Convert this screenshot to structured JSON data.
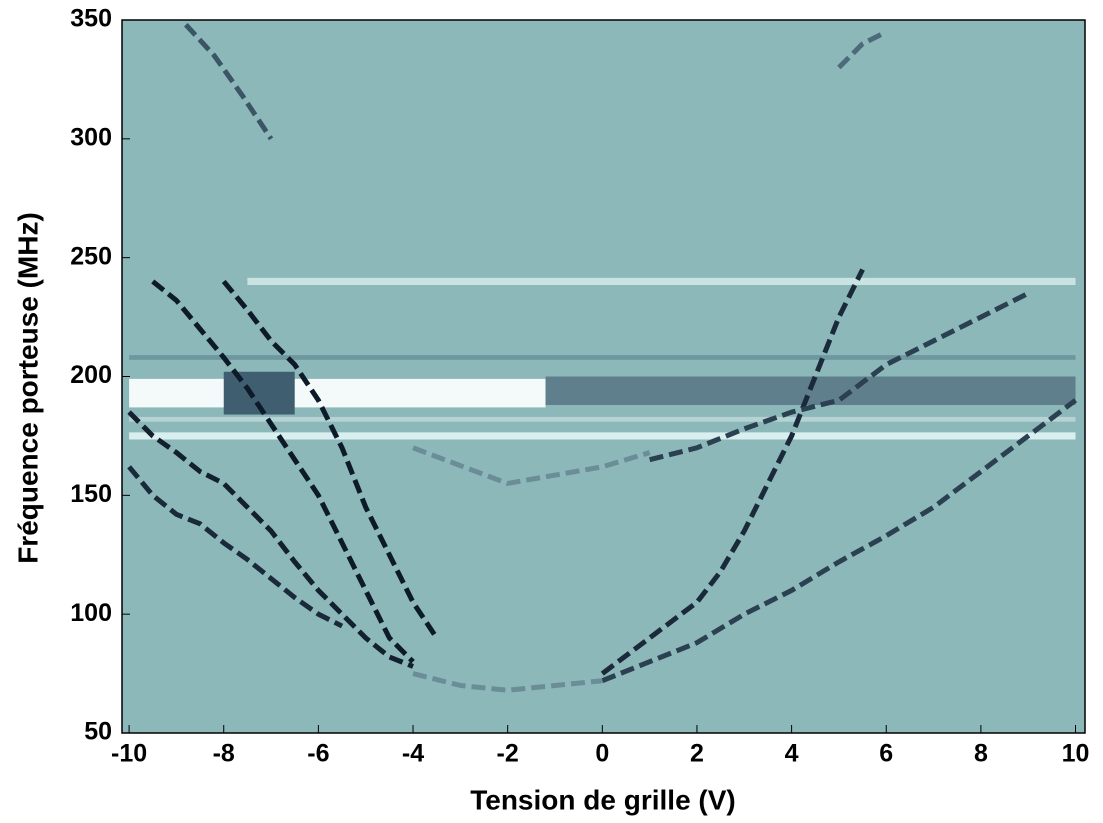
{
  "chart_data": {
    "type": "heatmap_traces",
    "xlabel": "Tension de grille (V)",
    "ylabel": "Fréquence porteuse (MHz)",
    "background": "#8db8ba",
    "xlim": [
      -10.15,
      10.2
    ],
    "xticks": [
      -10,
      -8,
      -6,
      -4,
      -2,
      0,
      2,
      4,
      6,
      8,
      10
    ],
    "ylim": [
      50,
      350
    ],
    "yticks": [
      50,
      100,
      150,
      200,
      250,
      300,
      350
    ],
    "bands": [
      {
        "color": "#f4fafa",
        "xrange": [
          -10,
          -1.2
        ],
        "yrange": [
          187,
          199
        ]
      },
      {
        "color": "#5f7f8c",
        "xrange": [
          -1.2,
          10
        ],
        "yrange": [
          188,
          200
        ]
      },
      {
        "color": "#3f5f70",
        "xrange": [
          -8,
          -6.5
        ],
        "yrange": [
          184,
          202
        ]
      },
      {
        "color": "#c9e3e3",
        "xrange": [
          -7.5,
          10
        ],
        "yrange": [
          238.5,
          241.5
        ]
      },
      {
        "color": "#d9eeee",
        "xrange": [
          -10,
          10
        ],
        "yrange": [
          173.5,
          176.5
        ]
      },
      {
        "color": "#b5d3d4",
        "xrange": [
          -10,
          10
        ],
        "yrange": [
          181,
          183
        ]
      },
      {
        "color": "#6f97a0",
        "xrange": [
          -10,
          10
        ],
        "yrange": [
          207,
          209
        ]
      }
    ],
    "series": [
      {
        "color": "#0d1a2a",
        "x": [
          -8,
          -7.5,
          -7,
          -6.5,
          -6,
          -5.5,
          -5,
          -4.5,
          -4,
          -3.5
        ],
        "values": [
          240,
          228,
          215,
          205,
          190,
          170,
          145,
          125,
          105,
          90
        ]
      },
      {
        "color": "#0d1a2a",
        "x": [
          -9.5,
          -9,
          -8.5,
          -8,
          -7.5,
          -7,
          -6.5,
          -6,
          -5.5,
          -5,
          -4.5,
          -4
        ],
        "values": [
          240,
          232,
          220,
          208,
          195,
          180,
          165,
          150,
          130,
          110,
          90,
          80
        ]
      },
      {
        "color": "#12202f",
        "x": [
          -10,
          -9.5,
          -9,
          -8.5,
          -8,
          -7.5,
          -7,
          -6.5,
          -6,
          -5.5,
          -5,
          -4.5,
          -4
        ],
        "values": [
          185,
          175,
          168,
          160,
          155,
          145,
          135,
          122,
          110,
          100,
          90,
          82,
          78
        ]
      },
      {
        "color": "#1a2a3a",
        "x": [
          -10,
          -9.5,
          -9,
          -8.5,
          -8,
          -7.5,
          -7,
          -6.5,
          -6,
          -5.5
        ],
        "values": [
          162,
          150,
          142,
          138,
          130,
          123,
          115,
          107,
          100,
          95
        ]
      },
      {
        "color": "#3b5566",
        "x": [
          -8.8,
          -8.2,
          -7.6,
          -7
        ],
        "values": [
          348,
          335,
          318,
          300
        ]
      },
      {
        "color": "#1a2a3a",
        "x": [
          0,
          1,
          2,
          2.5,
          3,
          3.5,
          4,
          4.5,
          5,
          5.5
        ],
        "values": [
          75,
          90,
          105,
          118,
          135,
          155,
          175,
          200,
          225,
          245
        ]
      },
      {
        "color": "#2b4050",
        "x": [
          0,
          2,
          3,
          4,
          5,
          6,
          7,
          8,
          9,
          10
        ],
        "values": [
          72,
          88,
          100,
          110,
          122,
          133,
          145,
          160,
          175,
          190
        ]
      },
      {
        "color": "#2b4050",
        "x": [
          1,
          2,
          3,
          4,
          5,
          6,
          7,
          8,
          9
        ],
        "values": [
          165,
          170,
          178,
          185,
          190,
          205,
          215,
          225,
          235
        ]
      },
      {
        "color": "#4d6a78",
        "x": [
          5,
          5.5,
          6
        ],
        "values": [
          330,
          340,
          345
        ]
      },
      {
        "color": "#6b8d98",
        "x": [
          -4,
          -3,
          -2,
          -1,
          0
        ],
        "values": [
          75,
          70,
          68,
          70,
          72
        ]
      },
      {
        "color": "#6b8d98",
        "x": [
          -4,
          -2,
          0,
          1
        ],
        "values": [
          170,
          155,
          162,
          168
        ]
      }
    ]
  }
}
